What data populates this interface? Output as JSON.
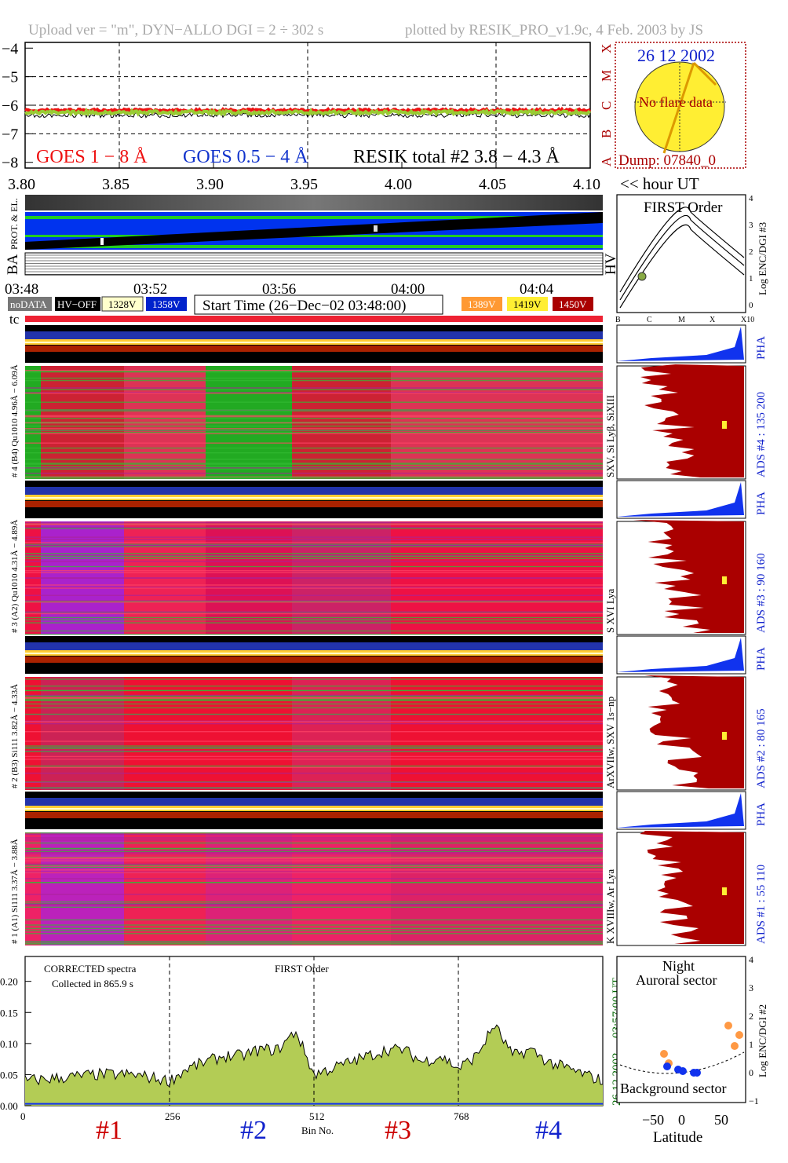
{
  "header": {
    "upload": "Upload ver = \"m\", DYN−ALLO DGI =   2 ÷ 302 s",
    "plotted": "plotted by RESIK_PRO_v1.9c, 4 Feb. 2003 by JS"
  },
  "colors": {
    "goes_long": "#ee1111",
    "goes_short": "#1133cc",
    "resik_total": "#000000",
    "resik_fill": "#99cc33",
    "ads_hist": "#aa0000",
    "pha_hist": "#1133ee",
    "sun": "#ffee33",
    "blue_text": "#1122cc",
    "red_text": "#cc0000"
  },
  "goes_panel": {
    "y_ticks": [
      "−4",
      "−5",
      "−6",
      "−7",
      "−8"
    ],
    "x_ticks": [
      "3.80",
      "3.85",
      "3.90",
      "3.95",
      "4.00",
      "4.05",
      "4.10"
    ],
    "x_unit": "<< hour UT",
    "class_labels": [
      "X",
      "M",
      "C",
      "B",
      "A"
    ],
    "legend_goes_long": "GOES 1 − 8 Å",
    "legend_goes_short": "GOES 0.5 − 4 Å",
    "legend_resik": "RESIK total #2  3.8 − 4.3 Å",
    "ylim": [
      -8.2,
      -3.8
    ],
    "xlim": [
      3.8,
      4.1
    ],
    "resik_level": -6.35,
    "goes_long_level": -6.18,
    "goes_short_level": -6.25
  },
  "sun_panel": {
    "date": "26 12 2002",
    "note": "No flare data",
    "dump": "Dump: 07840_0"
  },
  "hk_panel": {
    "label_left1": "PROT. & EL.",
    "label_left2": "BA",
    "label_right": "HV",
    "time_ticks": [
      "03:48",
      "03:52",
      "03:56",
      "04:00",
      "04:04"
    ]
  },
  "legend_row": {
    "nodata": "noDATA",
    "hvoff": "HV−OFF",
    "v1328": "1328V",
    "v1358": "1358V",
    "start_time": "Start Time (26−Dec−02 03:48:00)",
    "v1389": "1389V",
    "v1419": "1419V",
    "v1450": "1450V",
    "tc": "tc"
  },
  "first_order_panel": {
    "title": "FIRST Order",
    "x_ticks": [
      "B",
      "C",
      "M",
      "X",
      "X10"
    ],
    "y_ticks": [
      "4",
      "3",
      "2",
      "1",
      "0"
    ],
    "ylabel": "Log ENC/DGI #3"
  },
  "channels": [
    {
      "side_label": "# 4 (B4) Qu1010 4.96Å − 6.09Å",
      "lines": "SXV, Si Lyβ, SiXIII",
      "ads": "ADS #4 :   135 200",
      "pha": "PHA"
    },
    {
      "side_label": "# 3 (A2) Qu1010 4.31Å − 4.89Å",
      "lines": "S XVI Lya",
      "ads": "ADS #3 :   90 160",
      "pha": "PHA"
    },
    {
      "side_label": "# 2 (B3) Si111 3.82Å − 4.33Å",
      "lines": "ArXVIIw, SXV 1s−np",
      "ads": "ADS #2 :   80 165",
      "pha": "PHA"
    },
    {
      "side_label": "# 1 (A1) Si111 3.37Å − 3.88Å",
      "lines": "K XVIIIw, Ar Lya",
      "ads": "ADS #1 :   55 110",
      "pha": "PHA"
    }
  ],
  "spectrum_panel": {
    "title": "CORRECTED spectra",
    "collected": "Collected in   865.9 s",
    "order": "FIRST Order",
    "y_ticks": [
      "0.20",
      "0.15",
      "0.10",
      "0.05",
      "0.00"
    ],
    "x_ticks": [
      "0",
      "256",
      "512",
      "768"
    ],
    "xlabel": "Bin No.",
    "ylim": [
      0,
      0.24
    ],
    "xlim": [
      0,
      1024
    ],
    "side_time": "03:57:00 UT",
    "side_date": "26 12 2002",
    "channel_labels": [
      "#1",
      "#2",
      "#3",
      "#4"
    ]
  },
  "latitude_panel": {
    "title1": "Night",
    "title2": "Auroral sector",
    "bottom": "Background sector",
    "x_ticks": [
      "−50",
      "0",
      "50"
    ],
    "xlabel": "Latitude",
    "y_ticks": [
      "4",
      "3",
      "2",
      "1",
      "0",
      "−1"
    ],
    "ylabel": "Log ENC/DGI #2"
  },
  "chart_data": {
    "type": "line",
    "title": "",
    "xlabel": "Bin No.",
    "ylabel": "",
    "ylim": [
      0,
      0.24
    ],
    "x": [
      0,
      64,
      128,
      192,
      256,
      288,
      320,
      352,
      384,
      416,
      448,
      480,
      512,
      544,
      576,
      608,
      640,
      672,
      704,
      736,
      768,
      800,
      832,
      864,
      896,
      928,
      960,
      992,
      1024
    ],
    "series": [
      {
        "name": "",
        "values": [
          0.04,
          0.045,
          0.05,
          0.05,
          0.04,
          0.06,
          0.07,
          0.08,
          0.08,
          0.09,
          0.09,
          0.12,
          0.05,
          0.06,
          0.07,
          0.08,
          0.09,
          0.09,
          0.07,
          0.08,
          0.06,
          0.08,
          0.13,
          0.08,
          0.09,
          0.07,
          0.06,
          0.05,
          0.04
        ]
      }
    ]
  }
}
